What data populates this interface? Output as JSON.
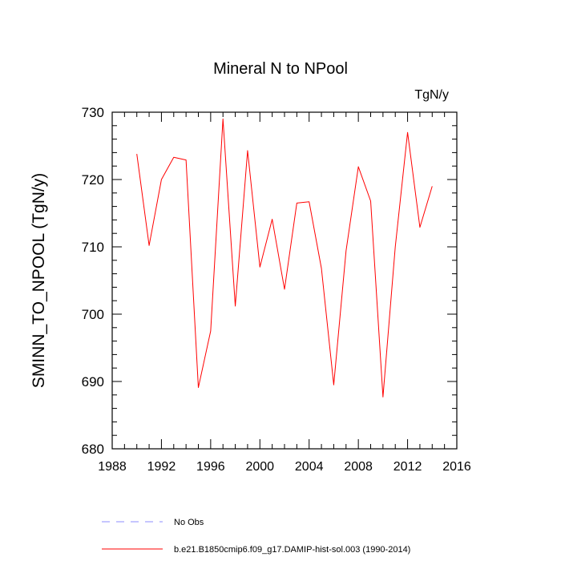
{
  "chart_data": {
    "type": "line",
    "title": "Mineral N to NPool",
    "units": "TgN/y",
    "ylabel": "SMINN_TO_NPOOL  (TgN/y)",
    "xlabel": "",
    "xlim": [
      1988,
      2016
    ],
    "ylim": [
      680,
      730
    ],
    "x_ticks": [
      1988,
      1992,
      1996,
      2000,
      2004,
      2008,
      2012,
      2016
    ],
    "x_tick_labels": [
      "1988",
      "1992",
      "1996",
      "2000",
      "2004",
      "2008",
      "2012",
      "2016"
    ],
    "y_ticks": [
      680,
      690,
      700,
      710,
      720,
      730
    ],
    "y_tick_labels": [
      "680",
      "690",
      "700",
      "710",
      "720",
      "730"
    ],
    "grid": false,
    "legend_position": "bottom",
    "series": [
      {
        "name": "b.e21.B1850cmip6.f09_g17.DAMIP-hist-sol.003 (1990-2014)",
        "color": "#ff0000",
        "dash": "solid",
        "x": [
          1990,
          1991,
          1992,
          1993,
          1994,
          1995,
          1996,
          1997,
          1998,
          1999,
          2000,
          2001,
          2002,
          2003,
          2004,
          2005,
          2006,
          2007,
          2008,
          2009,
          2010,
          2011,
          2012,
          2013,
          2014
        ],
        "values": [
          723.8,
          710.2,
          720.0,
          723.3,
          722.9,
          689.1,
          697.5,
          729.0,
          701.2,
          724.3,
          707.0,
          714.1,
          703.7,
          716.5,
          716.7,
          706.8,
          689.5,
          709.4,
          721.9,
          716.8,
          687.7,
          710.0,
          727.0,
          712.9,
          719.0
        ]
      }
    ],
    "legend": [
      {
        "label": "No Obs",
        "color": "#8c8cff",
        "dash": "dashed"
      },
      {
        "label": "b.e21.B1850cmip6.f09_g17.DAMIP-hist-sol.003 (1990-2014)",
        "color": "#ff0000",
        "dash": "solid"
      }
    ]
  }
}
